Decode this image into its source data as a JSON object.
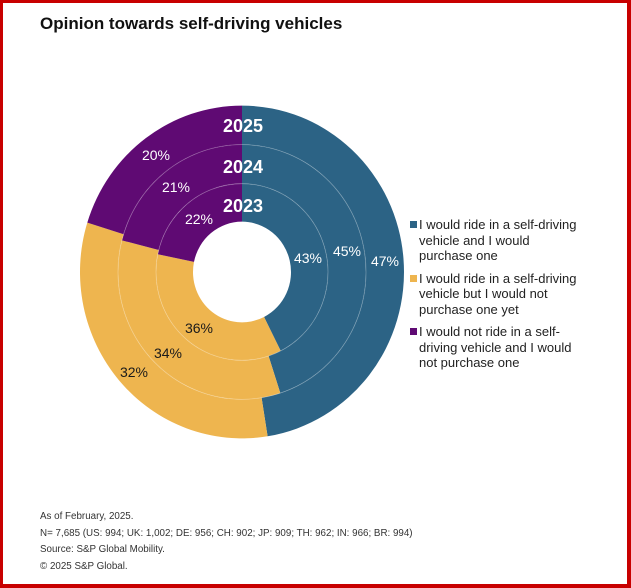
{
  "chart_data": {
    "type": "pie",
    "variant": "nested-donut",
    "title": "Opinion towards self-driving vehicles",
    "unit": "%",
    "start": "12 o'clock, clockwise",
    "legend_position": "right",
    "categories": [
      {
        "key": "ride-and-purchase",
        "label": "I would ride in a self-driving vehicle and I would purchase one",
        "color": "#2c6385",
        "label_color": "#ffffff"
      },
      {
        "key": "ride-not-purchase",
        "label": "I would ride in a self-driving vehicle but I would not purchase one yet",
        "color": "#eeb54f",
        "label_color": "#1a1a1a"
      },
      {
        "key": "not-ride",
        "label": "I would not ride in a self-driving vehicle and I would not purchase one",
        "color": "#5f0a73",
        "label_color": "#ffffff"
      }
    ],
    "series": [
      {
        "name": "2023",
        "ring": "inner",
        "values": [
          43,
          36,
          22
        ]
      },
      {
        "name": "2024",
        "ring": "middle",
        "values": [
          45,
          34,
          21
        ]
      },
      {
        "name": "2025",
        "ring": "outer",
        "values": [
          47,
          32,
          20
        ]
      }
    ]
  },
  "footer": {
    "lines": [
      "As of February, 2025.",
      "N= 7,685 (US: 994; UK: 1,002; DE: 956; CH: 902; JP: 909; TH: 962; IN: 966; BR: 994)",
      "Source: S&P Global Mobility.",
      "© 2025 S&P Global."
    ]
  },
  "frame": {
    "border_color": "#c80000"
  }
}
